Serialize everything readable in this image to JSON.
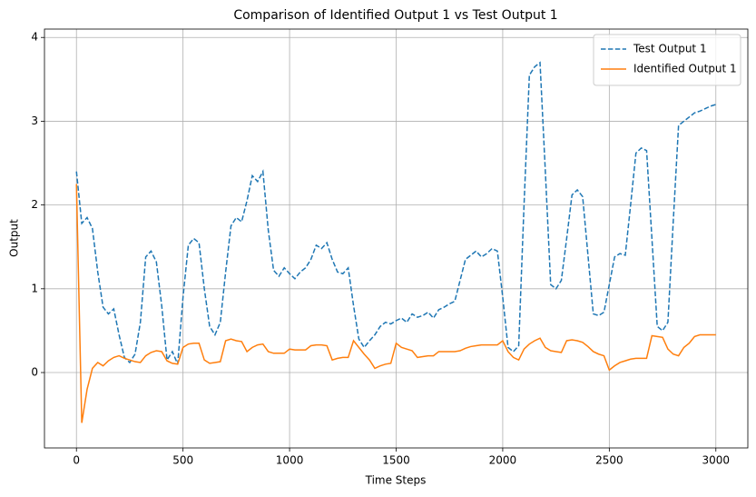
{
  "chart_data": {
    "type": "line",
    "title": "Comparison of Identified Output 1 vs Test Output 1",
    "x_label": "Time Steps",
    "y_label": "Output",
    "xlim": [
      -150,
      3150
    ],
    "xticks": [
      0,
      500,
      1000,
      1500,
      2000,
      2500,
      3000
    ],
    "ylim": [
      -0.9,
      4.1
    ],
    "yticks": [
      0,
      1,
      2,
      3,
      4
    ],
    "grid": true,
    "legend": "upper right",
    "x": [
      0,
      25,
      50,
      75,
      100,
      125,
      150,
      175,
      200,
      225,
      250,
      275,
      300,
      325,
      350,
      375,
      400,
      425,
      450,
      475,
      500,
      525,
      550,
      575,
      600,
      625,
      650,
      675,
      700,
      725,
      750,
      775,
      800,
      825,
      850,
      875,
      900,
      925,
      950,
      975,
      1000,
      1025,
      1050,
      1075,
      1100,
      1125,
      1150,
      1175,
      1200,
      1225,
      1250,
      1275,
      1300,
      1325,
      1350,
      1375,
      1400,
      1425,
      1450,
      1475,
      1500,
      1525,
      1550,
      1575,
      1600,
      1625,
      1650,
      1675,
      1700,
      1725,
      1750,
      1775,
      1800,
      1825,
      1850,
      1875,
      1900,
      1925,
      1950,
      1975,
      2000,
      2025,
      2050,
      2075,
      2100,
      2125,
      2150,
      2175,
      2200,
      2225,
      2250,
      2275,
      2300,
      2325,
      2350,
      2375,
      2400,
      2425,
      2450,
      2475,
      2500,
      2525,
      2550,
      2575,
      2600,
      2625,
      2650,
      2675,
      2700,
      2725,
      2750,
      2775,
      2800,
      2825,
      2850,
      2875,
      2900,
      2925,
      2950,
      2975,
      3000
    ],
    "series": [
      {
        "name": "Test Output 1",
        "color": "#1f77b4",
        "linestyle": "dashed",
        "values": [
          2.4,
          1.78,
          1.85,
          1.72,
          1.2,
          0.78,
          0.7,
          0.76,
          0.45,
          0.18,
          0.12,
          0.22,
          0.6,
          1.38,
          1.45,
          1.32,
          0.8,
          0.15,
          0.25,
          0.1,
          0.9,
          1.52,
          1.6,
          1.55,
          1.0,
          0.55,
          0.45,
          0.6,
          1.2,
          1.75,
          1.85,
          1.8,
          2.05,
          2.35,
          2.28,
          2.4,
          1.7,
          1.22,
          1.15,
          1.25,
          1.18,
          1.12,
          1.2,
          1.25,
          1.35,
          1.52,
          1.48,
          1.55,
          1.35,
          1.2,
          1.18,
          1.25,
          0.8,
          0.4,
          0.3,
          0.38,
          0.45,
          0.55,
          0.6,
          0.58,
          0.62,
          0.65,
          0.6,
          0.7,
          0.66,
          0.68,
          0.72,
          0.65,
          0.75,
          0.78,
          0.82,
          0.85,
          1.1,
          1.35,
          1.4,
          1.45,
          1.38,
          1.42,
          1.48,
          1.45,
          0.9,
          0.3,
          0.25,
          0.32,
          2.0,
          3.55,
          3.65,
          3.7,
          2.4,
          1.05,
          1.0,
          1.1,
          1.6,
          2.12,
          2.18,
          2.1,
          1.4,
          0.7,
          0.68,
          0.72,
          1.05,
          1.38,
          1.42,
          1.4,
          2.0,
          2.62,
          2.68,
          2.65,
          1.6,
          0.55,
          0.5,
          0.6,
          1.8,
          2.95,
          3.0,
          3.05,
          3.1,
          3.12,
          3.15,
          3.18,
          3.2
        ]
      },
      {
        "name": "Identified Output 1",
        "color": "#ff7f0e",
        "linestyle": "solid",
        "values": [
          2.25,
          -0.6,
          -0.2,
          0.05,
          0.12,
          0.08,
          0.14,
          0.18,
          0.2,
          0.17,
          0.15,
          0.13,
          0.12,
          0.2,
          0.24,
          0.26,
          0.25,
          0.14,
          0.11,
          0.1,
          0.3,
          0.34,
          0.35,
          0.35,
          0.15,
          0.11,
          0.12,
          0.13,
          0.38,
          0.4,
          0.38,
          0.37,
          0.25,
          0.3,
          0.33,
          0.34,
          0.25,
          0.23,
          0.23,
          0.23,
          0.28,
          0.27,
          0.27,
          0.27,
          0.32,
          0.33,
          0.33,
          0.32,
          0.15,
          0.17,
          0.18,
          0.18,
          0.38,
          0.3,
          0.22,
          0.15,
          0.05,
          0.08,
          0.1,
          0.11,
          0.35,
          0.3,
          0.28,
          0.26,
          0.18,
          0.19,
          0.2,
          0.2,
          0.25,
          0.25,
          0.25,
          0.25,
          0.26,
          0.29,
          0.31,
          0.32,
          0.33,
          0.33,
          0.33,
          0.33,
          0.38,
          0.25,
          0.18,
          0.15,
          0.28,
          0.34,
          0.38,
          0.41,
          0.3,
          0.26,
          0.25,
          0.24,
          0.38,
          0.39,
          0.38,
          0.36,
          0.31,
          0.25,
          0.22,
          0.2,
          0.03,
          0.08,
          0.12,
          0.14,
          0.16,
          0.17,
          0.17,
          0.17,
          0.44,
          0.43,
          0.42,
          0.28,
          0.22,
          0.2,
          0.3,
          0.35,
          0.43,
          0.45,
          0.45,
          0.45,
          0.45
        ]
      }
    ]
  }
}
